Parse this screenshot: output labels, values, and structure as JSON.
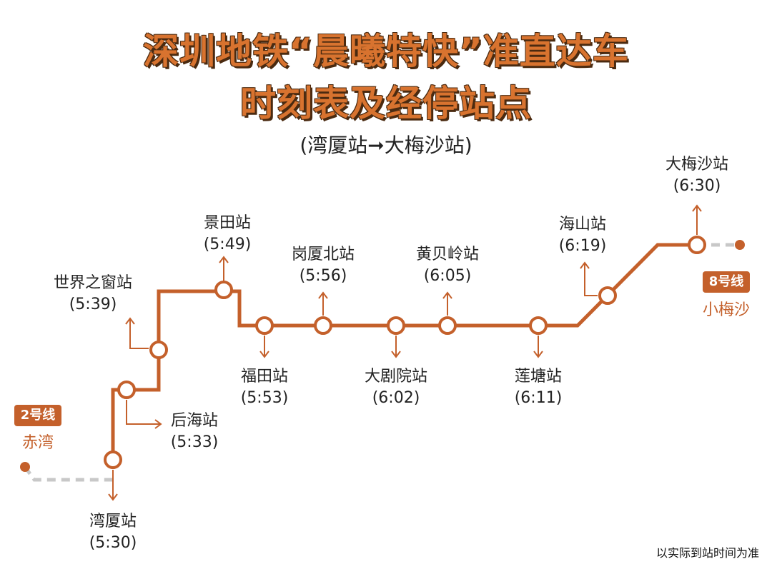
{
  "title_line1": "深圳地铁“晨曦特快”准直达车",
  "title_line2": "时刻表及经停站点",
  "subtitle": "(湾厦站➞大梅沙站)",
  "colors": {
    "line": "#c4602b",
    "title": "#d8732f",
    "dashed": "#c8c8c8"
  },
  "stations": [
    {
      "name": "湾厦站",
      "time": "(5:30)"
    },
    {
      "name": "后海站",
      "time": "(5:33)"
    },
    {
      "name": "世界之窗站",
      "time": "(5:39)"
    },
    {
      "name": "景田站",
      "time": "(5:49)"
    },
    {
      "name": "福田站",
      "time": "(5:53)"
    },
    {
      "name": "岗厦北站",
      "time": "(5:56)"
    },
    {
      "name": "大剧院站",
      "time": "(6:02)"
    },
    {
      "name": "黄贝岭站",
      "time": "(6:05)"
    },
    {
      "name": "莲塘站",
      "time": "(6:11)"
    },
    {
      "name": "海山站",
      "time": "(6:19)"
    },
    {
      "name": "大梅沙站",
      "time": "(6:30)"
    }
  ],
  "transfers": {
    "start": {
      "line": "2号线",
      "place": "赤湾"
    },
    "end": {
      "line": "8号线",
      "place": "小梅沙"
    }
  },
  "note": "以实际到站时间为准"
}
